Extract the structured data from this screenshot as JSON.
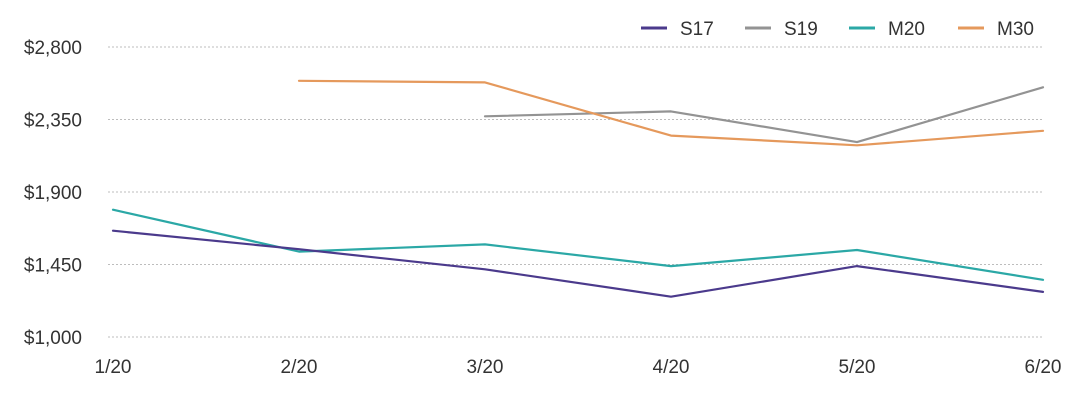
{
  "chart_data": {
    "type": "line",
    "categories": [
      "1/20",
      "2/20",
      "3/20",
      "4/20",
      "5/20",
      "6/20"
    ],
    "y_ticks": [
      "$1,000",
      "$1,450",
      "$1,900",
      "$2,350",
      "$2,800"
    ],
    "ylim": [
      1000,
      2800
    ],
    "grid": true,
    "legend_position": "top-right",
    "series": [
      {
        "name": "S17",
        "color": "#4b3a8c",
        "values": [
          1660,
          1545,
          1420,
          1250,
          1440,
          1280
        ]
      },
      {
        "name": "S19",
        "color": "#939393",
        "values": [
          null,
          null,
          2370,
          2400,
          2210,
          2550
        ]
      },
      {
        "name": "M20",
        "color": "#2ba8a6",
        "values": [
          1790,
          1530,
          1575,
          1440,
          1540,
          1355
        ]
      },
      {
        "name": "M30",
        "color": "#e5995c",
        "values": [
          null,
          2590,
          2580,
          2250,
          2190,
          2280
        ]
      }
    ]
  }
}
